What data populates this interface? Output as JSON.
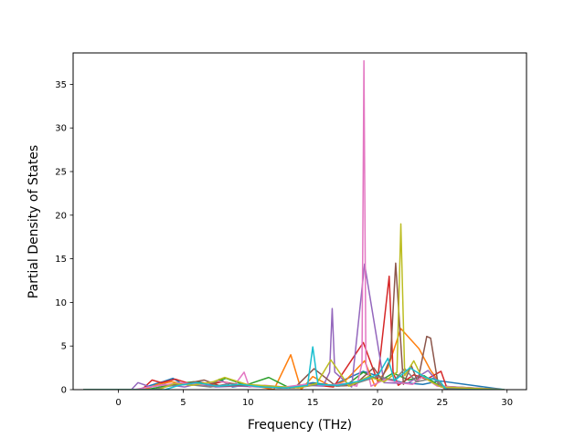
{
  "chart_data": {
    "type": "line",
    "title": "",
    "xlabel": "Frequency (THz)",
    "ylabel": "Partial Density of States",
    "xlim": [
      -3.5,
      31.5
    ],
    "ylim": [
      0,
      38.6
    ],
    "xticks": [
      0,
      5,
      10,
      15,
      20,
      25,
      30
    ],
    "yticks": [
      0,
      5,
      10,
      15,
      20,
      25,
      30,
      35
    ],
    "grid": false,
    "legend": "none",
    "series_colors": [
      "#1f77b4",
      "#ff7f0e",
      "#2ca02c",
      "#d62728",
      "#9467bd",
      "#8c564b",
      "#e377c2",
      "#7f7f7f",
      "#bcbd22",
      "#17becf"
    ],
    "series": [
      {
        "color": "#1f77b4",
        "x": [
          -2.7,
          1.5,
          2.5,
          3.4,
          4.2,
          5.0,
          6.1,
          7.2,
          7.8,
          8.8,
          9.7,
          11.2,
          13.4,
          15.0,
          16.5,
          18.9,
          20.8,
          22.0,
          23.5,
          24.8,
          29.8
        ],
        "y": [
          0,
          0,
          0.5,
          0.9,
          1.3,
          0.6,
          0.9,
          0.6,
          1.2,
          0.3,
          0.5,
          0.3,
          0.3,
          0.8,
          0.5,
          2.1,
          1.2,
          0.8,
          0.6,
          1.0,
          0
        ]
      },
      {
        "color": "#ff7f0e",
        "x": [
          -2.7,
          2.0,
          3.0,
          4.1,
          5.6,
          6.5,
          8.1,
          10.3,
          12.0,
          13.3,
          14.1,
          15.0,
          16.4,
          17.5,
          19.0,
          19.8,
          20.8,
          21.8,
          23.2,
          24.1,
          25.2,
          29.8
        ],
        "y": [
          0,
          0,
          0.6,
          0.9,
          0.5,
          0.8,
          0.4,
          0.5,
          0,
          4.0,
          0,
          1.5,
          0.4,
          1.0,
          3.3,
          0.4,
          2.5,
          7.0,
          4.7,
          2.2,
          0,
          0
        ]
      },
      {
        "color": "#2ca02c",
        "x": [
          -2.7,
          2.2,
          3.5,
          4.6,
          5.8,
          7.0,
          8.3,
          9.8,
          11.6,
          13.2,
          15.2,
          16.5,
          17.6,
          18.9,
          20.2,
          21.2,
          22.4,
          23.6,
          24.8,
          29.8
        ],
        "y": [
          0,
          0,
          0.4,
          0.7,
          0.9,
          0.6,
          1.3,
          0.5,
          1.4,
          0.2,
          0.7,
          0.5,
          0.5,
          2.0,
          1.0,
          1.9,
          1.1,
          1.6,
          0.4,
          0
        ]
      },
      {
        "color": "#d62728",
        "x": [
          -2.7,
          1.8,
          2.6,
          3.3,
          4.4,
          5.5,
          6.8,
          8.0,
          10.0,
          12.5,
          14.8,
          16.6,
          18.9,
          20.0,
          20.9,
          21.2,
          21.6,
          22.8,
          23.8,
          24.9,
          25.4,
          29.8
        ],
        "y": [
          0,
          0,
          1.1,
          0.8,
          1.2,
          0.7,
          0.5,
          0.9,
          0.4,
          0.2,
          0.6,
          0.3,
          5.4,
          1.0,
          13.0,
          2.0,
          0.5,
          1.7,
          1.2,
          2.1,
          0,
          0
        ]
      },
      {
        "color": "#9467bd",
        "x": [
          -2.7,
          1.0,
          1.5,
          2.5,
          3.6,
          5.1,
          6.2,
          7.5,
          9.2,
          11.0,
          13.0,
          14.5,
          15.8,
          16.3,
          16.5,
          16.7,
          18.0,
          19.0,
          20.5,
          22.3,
          23.9,
          25.0,
          29.8
        ],
        "y": [
          0,
          0,
          0.8,
          0.3,
          0.6,
          0.3,
          0.7,
          0.3,
          0.4,
          0.3,
          0.2,
          0.5,
          0.4,
          2.0,
          9.3,
          2.0,
          0.3,
          14.4,
          0.8,
          0.7,
          2.2,
          0.3,
          0
        ]
      },
      {
        "color": "#8c564b",
        "x": [
          -2.7,
          3.0,
          4.0,
          5.2,
          6.6,
          7.9,
          9.5,
          11.5,
          13.6,
          15.1,
          16.8,
          18.2,
          19.7,
          20.3,
          21.0,
          21.4,
          22.0,
          22.6,
          23.1,
          23.8,
          24.1,
          24.7,
          29.8
        ],
        "y": [
          0,
          0,
          0.5,
          0.7,
          1.1,
          0.4,
          0.5,
          0.3,
          0.2,
          2.4,
          0.4,
          0.5,
          2.5,
          1.2,
          3.6,
          14.5,
          0.6,
          2.8,
          0.9,
          6.1,
          5.9,
          0.4,
          0
        ]
      },
      {
        "color": "#e377c2",
        "x": [
          -2.7,
          1.2,
          2.4,
          4.8,
          6.4,
          7.6,
          9.0,
          9.7,
          10.1,
          11.3,
          12.8,
          14.4,
          16.2,
          17.4,
          18.4,
          18.8,
          18.95,
          19.1,
          19.5,
          20.6,
          21.7,
          22.7,
          23.5,
          24.6,
          29.8
        ],
        "y": [
          0,
          0,
          0.3,
          0.8,
          0.5,
          1.0,
          0.6,
          2.0,
          0.3,
          0.5,
          0.3,
          0.6,
          0.5,
          0.7,
          0.4,
          3.0,
          37.7,
          3.0,
          0.4,
          1.2,
          0.8,
          0.6,
          1.5,
          0.4,
          0
        ]
      },
      {
        "color": "#7f7f7f",
        "x": [
          -2.7,
          2.7,
          3.9,
          5.3,
          7.1,
          8.6,
          10.5,
          12.4,
          14.2,
          15.5,
          17.0,
          18.5,
          20.0,
          21.3,
          22.1,
          23.0,
          24.3,
          25.1,
          29.8
        ],
        "y": [
          0,
          0,
          0.4,
          0.6,
          0.3,
          0.7,
          0.4,
          0.2,
          0.3,
          0.6,
          0.4,
          0.8,
          1.5,
          1.1,
          2.4,
          0.9,
          1.3,
          0.2,
          0
        ]
      },
      {
        "color": "#bcbd22",
        "x": [
          -2.7,
          3.1,
          4.3,
          5.7,
          7.3,
          8.2,
          9.9,
          11.8,
          13.9,
          15.3,
          16.4,
          17.8,
          19.3,
          20.5,
          21.5,
          21.8,
          22.1,
          22.8,
          23.3,
          24.0,
          24.9,
          29.8
        ],
        "y": [
          0,
          0,
          0.7,
          0.5,
          0.9,
          1.4,
          0.6,
          0.4,
          0.2,
          0.7,
          3.4,
          0.4,
          1.5,
          0.9,
          2.0,
          19.0,
          1.6,
          3.3,
          1.8,
          1.0,
          0.3,
          0
        ]
      },
      {
        "color": "#17becf",
        "x": [
          -2.7,
          3.6,
          4.7,
          6.0,
          7.7,
          9.4,
          11.1,
          13.0,
          14.6,
          15.0,
          15.4,
          16.9,
          18.7,
          20.1,
          20.8,
          21.3,
          22.5,
          23.7,
          24.8,
          25.3,
          29.8
        ],
        "y": [
          0,
          0,
          0.5,
          0.8,
          0.4,
          0.6,
          0.3,
          0.2,
          0.5,
          4.9,
          0.6,
          0.5,
          1.0,
          1.8,
          3.6,
          1.0,
          2.5,
          1.4,
          1.0,
          0,
          0
        ]
      }
    ]
  }
}
